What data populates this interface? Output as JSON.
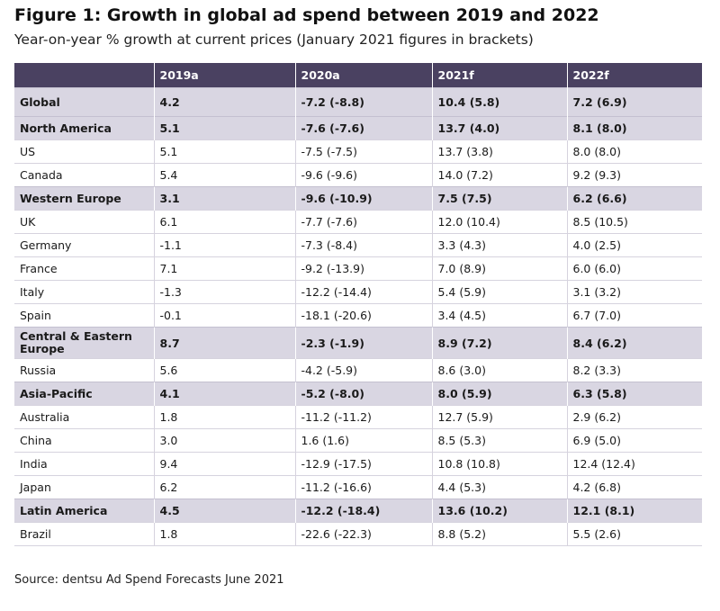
{
  "figure": {
    "title": "Figure 1: Growth in global ad spend between 2019 and 2022",
    "subtitle": "Year-on-year % growth at current prices (January 2021 figures in brackets)"
  },
  "table": {
    "headers": [
      "",
      "2019a",
      "2020a",
      "2021f",
      "2022f"
    ],
    "rows": [
      {
        "label": "Global",
        "kind": "region",
        "values": [
          "4.2",
          "-7.2 (-8.8)",
          "10.4 (5.8)",
          "7.2 (6.9)"
        ]
      },
      {
        "label": "North America",
        "kind": "bold",
        "values": [
          "5.1",
          "-7.6 (-7.6)",
          "13.7 (4.0)",
          "8.1 (8.0)"
        ]
      },
      {
        "label": "US",
        "kind": "country",
        "values": [
          "5.1",
          "-7.5 (-7.5)",
          "13.7 (3.8)",
          "8.0 (8.0)"
        ]
      },
      {
        "label": "Canada",
        "kind": "country",
        "values": [
          "5.4",
          "-9.6 (-9.6)",
          "14.0 (7.2)",
          "9.2 (9.3)"
        ]
      },
      {
        "label": "Western Europe",
        "kind": "region",
        "values": [
          "3.1",
          "-9.6 (-10.9)",
          "7.5 (7.5)",
          "6.2 (6.6)"
        ]
      },
      {
        "label": "UK",
        "kind": "country",
        "values": [
          "6.1",
          "-7.7 (-7.6)",
          "12.0 (10.4)",
          "8.5 (10.5)"
        ]
      },
      {
        "label": "Germany",
        "kind": "country",
        "values": [
          "-1.1",
          "-7.3 (-8.4)",
          "3.3 (4.3)",
          "4.0 (2.5)"
        ]
      },
      {
        "label": "France",
        "kind": "country",
        "values": [
          "7.1",
          "-9.2 (-13.9)",
          "7.0 (8.9)",
          "6.0 (6.0)"
        ]
      },
      {
        "label": "Italy",
        "kind": "country",
        "values": [
          "-1.3",
          "-12.2 (-14.4)",
          "5.4 (5.9)",
          "3.1 (3.2)"
        ]
      },
      {
        "label": "Spain",
        "kind": "country",
        "values": [
          "-0.1",
          "-18.1 (-20.6)",
          "3.4 (4.5)",
          "6.7 (7.0)"
        ]
      },
      {
        "label": "Central & Eastern Europe",
        "kind": "bold-wrap",
        "values": [
          "8.7",
          "-2.3 (-1.9)",
          "8.9 (7.2)",
          "8.4 (6.2)"
        ]
      },
      {
        "label": "Russia",
        "kind": "country",
        "values": [
          "5.6",
          "-4.2 (-5.9)",
          "8.6 (3.0)",
          "8.2 (3.3)"
        ]
      },
      {
        "label": "Asia-Pacific",
        "kind": "region",
        "values": [
          "4.1",
          "-5.2 (-8.0)",
          "8.0 (5.9)",
          "6.3 (5.8)"
        ]
      },
      {
        "label": "Australia",
        "kind": "country",
        "values": [
          "1.8",
          "-11.2 (-11.2)",
          "12.7 (5.9)",
          "2.9 (6.2)"
        ]
      },
      {
        "label": "China",
        "kind": "country",
        "values": [
          "3.0",
          "1.6 (1.6)",
          "8.5 (5.3)",
          "6.9 (5.0)"
        ]
      },
      {
        "label": "India",
        "kind": "country",
        "values": [
          "9.4",
          "-12.9 (-17.5)",
          "10.8 (10.8)",
          "12.4 (12.4)"
        ]
      },
      {
        "label": "Japan",
        "kind": "country",
        "values": [
          "6.2",
          "-11.2 (-16.6)",
          "4.4 (5.3)",
          "4.2 (6.8)"
        ]
      },
      {
        "label": "Latin America",
        "kind": "bold",
        "values": [
          "4.5",
          "-12.2 (-18.4)",
          "13.6 (10.2)",
          "12.1 (8.1)"
        ]
      },
      {
        "label": "Brazil",
        "kind": "country",
        "values": [
          "1.8",
          "-22.6 (-22.3)",
          "8.8 (5.2)",
          "5.5 (2.6)"
        ]
      }
    ]
  },
  "source": "Source: dentsu Ad Spend Forecasts June 2021",
  "colors": {
    "header_bg": "#4a4161",
    "region_bg": "#d9d6e2"
  }
}
